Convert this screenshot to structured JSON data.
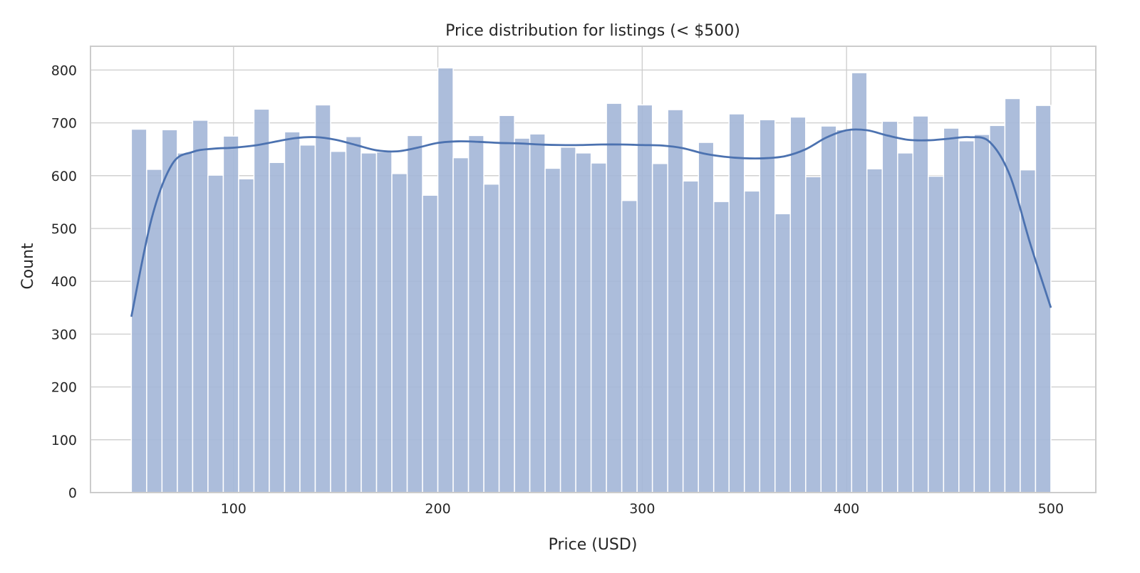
{
  "chart_data": {
    "type": "bar",
    "title": "Price distribution for listings (< $500)",
    "xlabel": "Price (USD)",
    "ylabel": "Count",
    "xlim": [
      30,
      522
    ],
    "ylim": [
      0,
      845
    ],
    "xticks": [
      100,
      200,
      300,
      400,
      500
    ],
    "yticks": [
      0,
      100,
      200,
      300,
      400,
      500,
      600,
      700,
      800
    ],
    "grid": true,
    "bins": {
      "start": 50,
      "width": 7.5
    },
    "values": [
      688,
      612,
      687,
      643,
      705,
      601,
      675,
      594,
      726,
      625,
      683,
      658,
      734,
      646,
      674,
      643,
      645,
      604,
      676,
      563,
      804,
      634,
      676,
      584,
      714,
      671,
      679,
      614,
      654,
      643,
      624,
      737,
      553,
      734,
      623,
      725,
      590,
      663,
      551,
      717,
      571,
      706,
      528,
      711,
      598,
      694,
      687,
      795,
      613,
      703,
      643,
      713,
      599,
      690,
      666,
      678,
      695,
      746,
      611,
      733
    ],
    "kde": {
      "x": [
        50,
        60,
        70,
        80,
        90,
        100,
        110,
        120,
        130,
        140,
        150,
        160,
        170,
        180,
        190,
        200,
        210,
        220,
        230,
        240,
        250,
        260,
        270,
        280,
        290,
        300,
        310,
        320,
        330,
        340,
        350,
        360,
        370,
        380,
        390,
        400,
        410,
        420,
        430,
        440,
        450,
        460,
        470,
        480,
        490,
        500
      ],
      "y": [
        333,
        520,
        622,
        645,
        651,
        653,
        657,
        664,
        671,
        673,
        668,
        658,
        648,
        646,
        653,
        662,
        665,
        664,
        662,
        661,
        659,
        658,
        658,
        659,
        659,
        658,
        657,
        652,
        642,
        636,
        633,
        633,
        637,
        650,
        672,
        686,
        686,
        676,
        668,
        667,
        670,
        673,
        664,
        600,
        470,
        350
      ]
    },
    "colors": {
      "bar": "#a5b7d8",
      "kde": "#4c72b0",
      "grid": "#cccccc",
      "frame": "#cccccc"
    }
  }
}
